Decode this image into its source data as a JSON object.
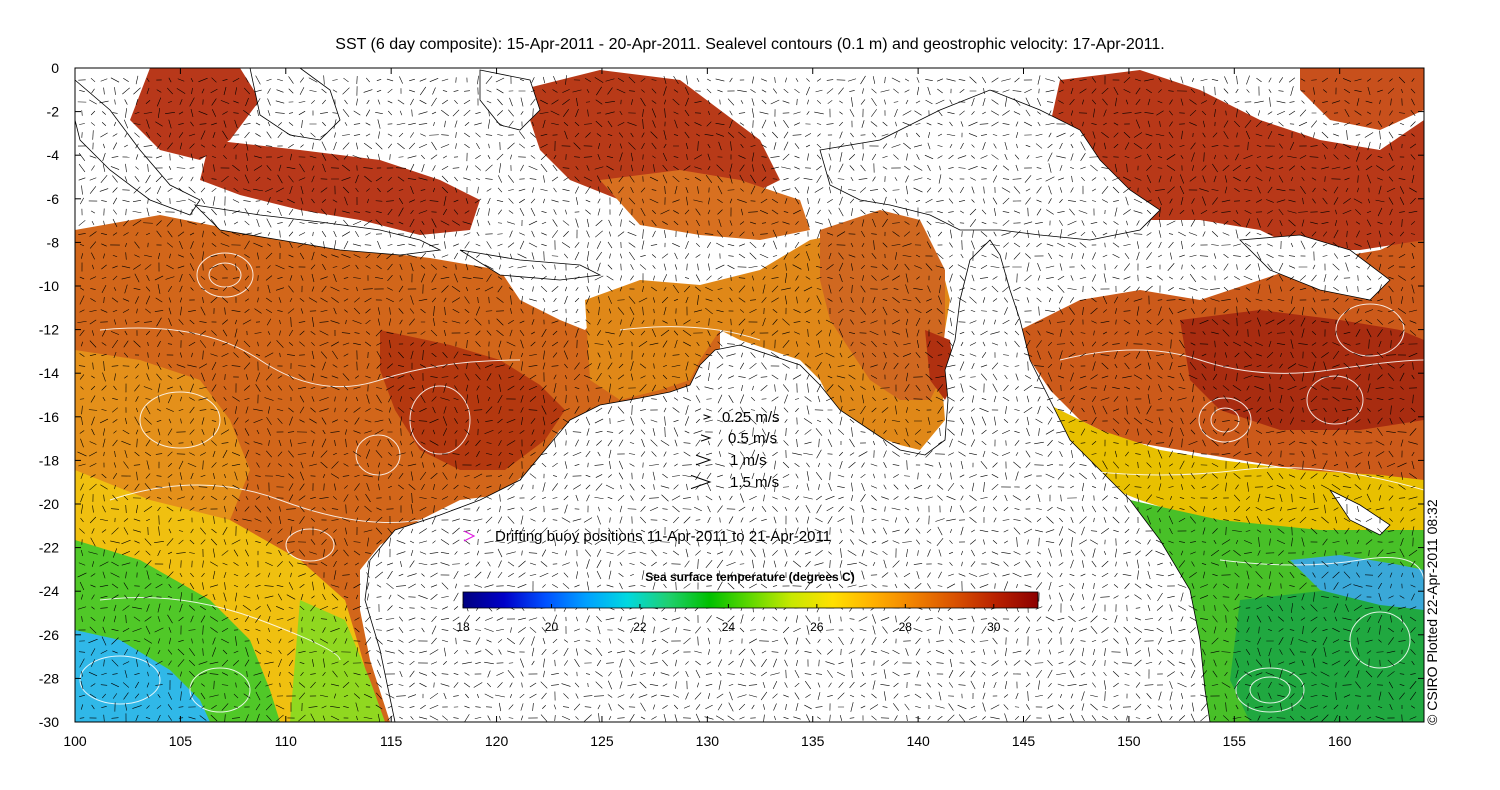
{
  "title": "SST (6 day composite): 15-Apr-2011 - 20-Apr-2011. Sealevel contours (0.1 m) and geostrophic velocity: 17-Apr-2011.",
  "credit": "© CSIRO Plotted 22-Apr-2011 08:32",
  "axes": {
    "x_ticks": [
      "100",
      "105",
      "110",
      "115",
      "120",
      "125",
      "130",
      "135",
      "140",
      "145",
      "150",
      "155",
      "160"
    ],
    "y_ticks": [
      "0",
      "-2",
      "-4",
      "-6",
      "-8",
      "-10",
      "-12",
      "-14",
      "-16",
      "-18",
      "-20",
      "-22",
      "-24",
      "-26",
      "-28",
      "-30"
    ],
    "xlim": [
      100,
      164
    ],
    "ylim": [
      -30,
      0
    ]
  },
  "velocity_legend": {
    "items": [
      {
        "label": "0.25 m/s",
        "scale": 0.25
      },
      {
        "label": "0.5 m/s",
        "scale": 0.5
      },
      {
        "label": "1 m/s",
        "scale": 1
      },
      {
        "label": "1.5 m/s",
        "scale": 1.5
      }
    ]
  },
  "buoy_legend": {
    "label": "Drifting buoy positions 11-Apr-2011 to 21-Apr-2011",
    "color": "#e020e0"
  },
  "colorbar": {
    "title": "Sea surface temperature (degrees C)",
    "min": 18,
    "max": 31,
    "ticks": [
      "18",
      "20",
      "22",
      "24",
      "26",
      "28",
      "30"
    ],
    "tick_values": [
      18,
      20,
      22,
      24,
      26,
      28,
      30
    ],
    "colors": [
      "#00007f",
      "#0000c8",
      "#0050ff",
      "#00a0ff",
      "#00d8e0",
      "#20d070",
      "#00c000",
      "#60d800",
      "#c8e800",
      "#ffe000",
      "#ffb000",
      "#f08000",
      "#d85000",
      "#b82000",
      "#8c0000"
    ]
  },
  "colors": {
    "land": "#ffffff",
    "ocean_warm": "#c8501c",
    "ocean_hot": "#a83010",
    "ocean_mid": "#e08010",
    "ocean_cool": "#e8c800",
    "ocean_green": "#40c020",
    "ocean_blue": "#00a8e8",
    "contour": "#ffffff",
    "coast": "#000000"
  }
}
